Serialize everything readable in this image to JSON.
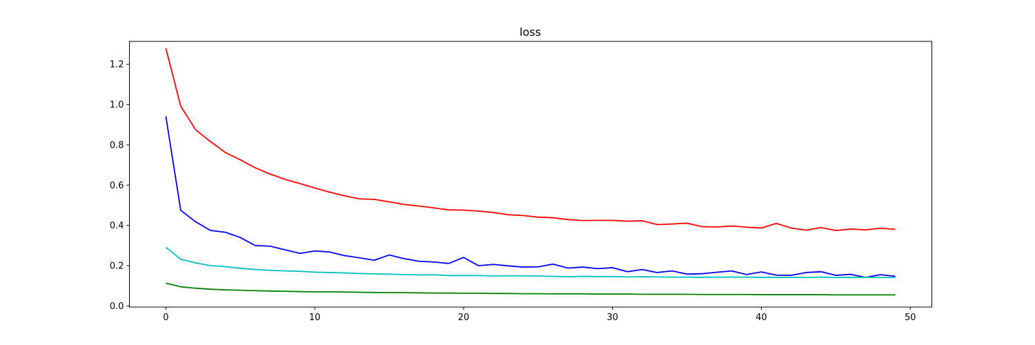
{
  "chart_data": {
    "type": "line",
    "title": "loss",
    "xlabel": "",
    "ylabel": "",
    "xlim": [
      -2.45,
      51.45
    ],
    "ylim": [
      -0.0055,
      1.3138
    ],
    "xticks": [
      0,
      10,
      20,
      30,
      40,
      50
    ],
    "yticks": [
      0.0,
      0.2,
      0.4,
      0.6,
      0.8,
      1.0,
      1.2
    ],
    "ytick_labels": [
      "0.0",
      "0.2",
      "0.4",
      "0.6",
      "0.8",
      "1.0",
      "1.2"
    ],
    "grid": false,
    "legend": "none",
    "x": [
      0,
      1,
      2,
      3,
      4,
      5,
      6,
      7,
      8,
      9,
      10,
      11,
      12,
      13,
      14,
      15,
      16,
      17,
      18,
      19,
      20,
      21,
      22,
      23,
      24,
      25,
      26,
      27,
      28,
      29,
      30,
      31,
      32,
      33,
      34,
      35,
      36,
      37,
      38,
      39,
      40,
      41,
      42,
      43,
      44,
      45,
      46,
      47,
      48,
      49
    ],
    "series": [
      {
        "color": "#ff0000",
        "values": [
          1.28,
          0.992,
          0.875,
          0.816,
          0.762,
          0.726,
          0.686,
          0.655,
          0.629,
          0.608,
          0.586,
          0.565,
          0.547,
          0.532,
          0.529,
          0.517,
          0.504,
          0.496,
          0.487,
          0.477,
          0.476,
          0.471,
          0.464,
          0.453,
          0.449,
          0.441,
          0.438,
          0.429,
          0.424,
          0.425,
          0.425,
          0.421,
          0.423,
          0.404,
          0.407,
          0.411,
          0.394,
          0.392,
          0.397,
          0.391,
          0.387,
          0.41,
          0.387,
          0.376,
          0.389,
          0.375,
          0.382,
          0.378,
          0.386,
          0.38
        ]
      },
      {
        "color": "#0000ff",
        "values": [
          0.942,
          0.475,
          0.418,
          0.375,
          0.366,
          0.34,
          0.3,
          0.297,
          0.279,
          0.261,
          0.273,
          0.268,
          0.25,
          0.239,
          0.227,
          0.253,
          0.235,
          0.222,
          0.218,
          0.211,
          0.241,
          0.2,
          0.206,
          0.199,
          0.193,
          0.194,
          0.208,
          0.188,
          0.193,
          0.185,
          0.19,
          0.17,
          0.181,
          0.166,
          0.174,
          0.158,
          0.16,
          0.167,
          0.174,
          0.156,
          0.169,
          0.153,
          0.152,
          0.166,
          0.17,
          0.152,
          0.157,
          0.142,
          0.155,
          0.147
        ]
      },
      {
        "color": "#00bfbf",
        "values": [
          0.291,
          0.232,
          0.214,
          0.2,
          0.195,
          0.187,
          0.181,
          0.177,
          0.174,
          0.172,
          0.168,
          0.166,
          0.164,
          0.161,
          0.159,
          0.158,
          0.156,
          0.154,
          0.155,
          0.151,
          0.151,
          0.151,
          0.149,
          0.15,
          0.149,
          0.149,
          0.147,
          0.145,
          0.147,
          0.146,
          0.146,
          0.144,
          0.145,
          0.144,
          0.143,
          0.143,
          0.142,
          0.143,
          0.143,
          0.143,
          0.142,
          0.142,
          0.142,
          0.141,
          0.143,
          0.141,
          0.142,
          0.142,
          0.141,
          0.141
        ]
      },
      {
        "color": "#008000",
        "values": [
          0.113,
          0.095,
          0.088,
          0.083,
          0.08,
          0.078,
          0.076,
          0.074,
          0.073,
          0.071,
          0.07,
          0.07,
          0.069,
          0.068,
          0.067,
          0.066,
          0.066,
          0.065,
          0.064,
          0.064,
          0.063,
          0.063,
          0.062,
          0.062,
          0.061,
          0.061,
          0.06,
          0.06,
          0.06,
          0.059,
          0.059,
          0.059,
          0.058,
          0.058,
          0.058,
          0.058,
          0.057,
          0.057,
          0.057,
          0.057,
          0.056,
          0.056,
          0.056,
          0.056,
          0.056,
          0.055,
          0.055,
          0.055,
          0.055,
          0.055
        ]
      }
    ]
  }
}
